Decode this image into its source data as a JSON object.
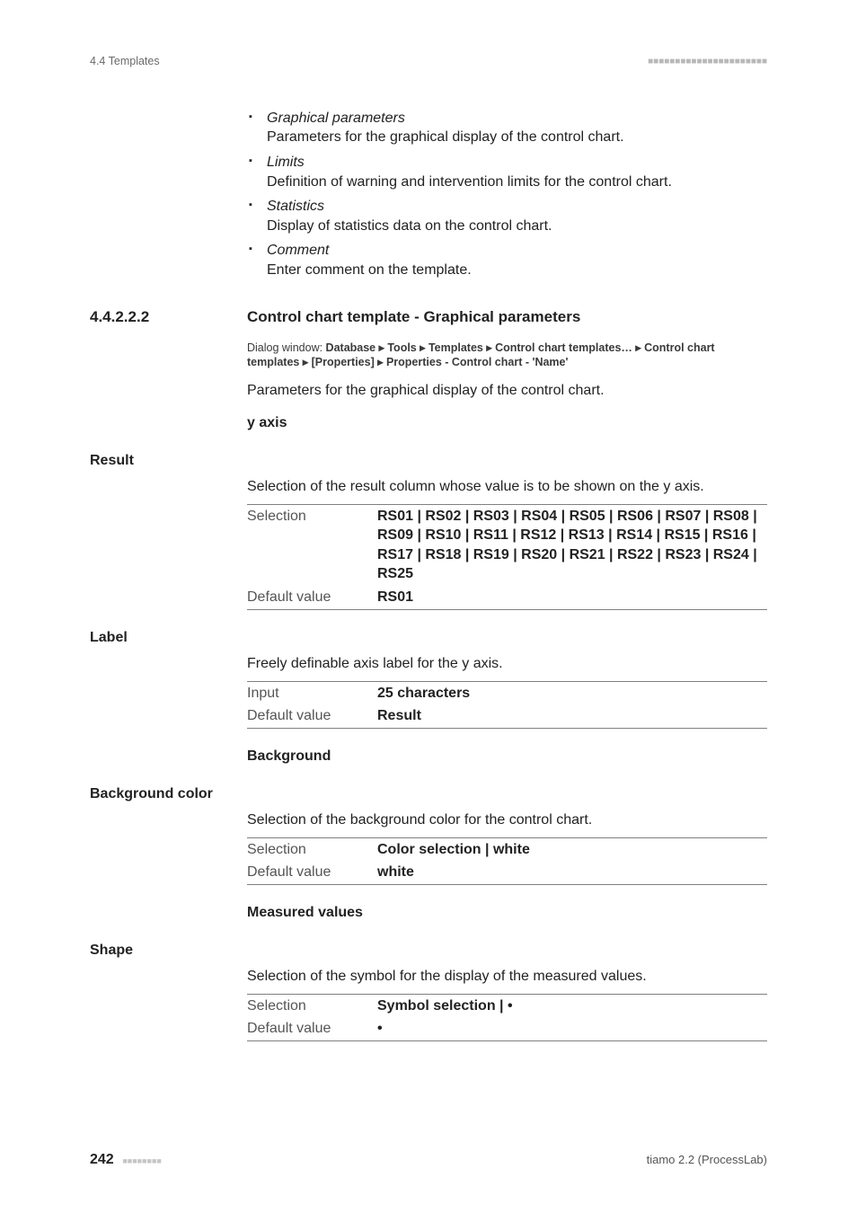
{
  "header": {
    "left": "4.4 Templates",
    "dots": "■■■■■■■■■■■■■■■■■■■■■■"
  },
  "bullets": [
    {
      "head": "Graphical parameters",
      "desc": "Parameters for the graphical display of the control chart."
    },
    {
      "head": "Limits",
      "desc": "Definition of warning and intervention limits for the control chart."
    },
    {
      "head": "Statistics",
      "desc": "Display of statistics data on the control chart."
    },
    {
      "head": "Comment",
      "desc": "Enter comment on the template."
    }
  ],
  "section": {
    "number": "4.4.2.2.2",
    "title": "Control chart template - Graphical parameters",
    "dialog_prefix": "Dialog window: ",
    "dialog_path": "Database ▸ Tools ▸ Templates ▸ Control chart templates… ▸ Control chart templates ▸ [Properties] ▸ Properties - Control chart - 'Name'",
    "intro": "Parameters for the graphical display of the control chart."
  },
  "groups": [
    {
      "heading": "y axis",
      "items": [
        {
          "label": "Result",
          "desc": "Selection of the result column whose value is to be shown on the y axis.",
          "rows": [
            {
              "k": "Selection",
              "v": "RS01 | RS02 | RS03 | RS04 | RS05 | RS06 | RS07 | RS08 | RS09 | RS10 | RS11 | RS12 | RS13 | RS14 | RS15 | RS16 | RS17 | RS18 | RS19 | RS20 | RS21 | RS22 | RS23 | RS24 | RS25"
            },
            {
              "k": "Default value",
              "v": "RS01"
            }
          ]
        },
        {
          "label": "Label",
          "desc": "Freely definable axis label for the y axis.",
          "rows": [
            {
              "k": "Input",
              "v": "25 characters"
            },
            {
              "k": "Default value",
              "v": "Result"
            }
          ]
        }
      ]
    },
    {
      "heading": "Background",
      "items": [
        {
          "label": "Background color",
          "desc": "Selection of the background color for the control chart.",
          "rows": [
            {
              "k": "Selection",
              "v": "Color selection | white"
            },
            {
              "k": "Default value",
              "v": "white"
            }
          ]
        }
      ]
    },
    {
      "heading": "Measured values",
      "items": [
        {
          "label": "Shape",
          "desc": "Selection of the symbol for the display of the measured values.",
          "rows": [
            {
              "k": "Selection",
              "v": "Symbol selection | •"
            },
            {
              "k": "Default value",
              "v": "•"
            }
          ]
        }
      ]
    }
  ],
  "footer": {
    "page": "242",
    "dots": "■■■■■■■■",
    "right": "tiamo 2.2 (ProcessLab)"
  }
}
